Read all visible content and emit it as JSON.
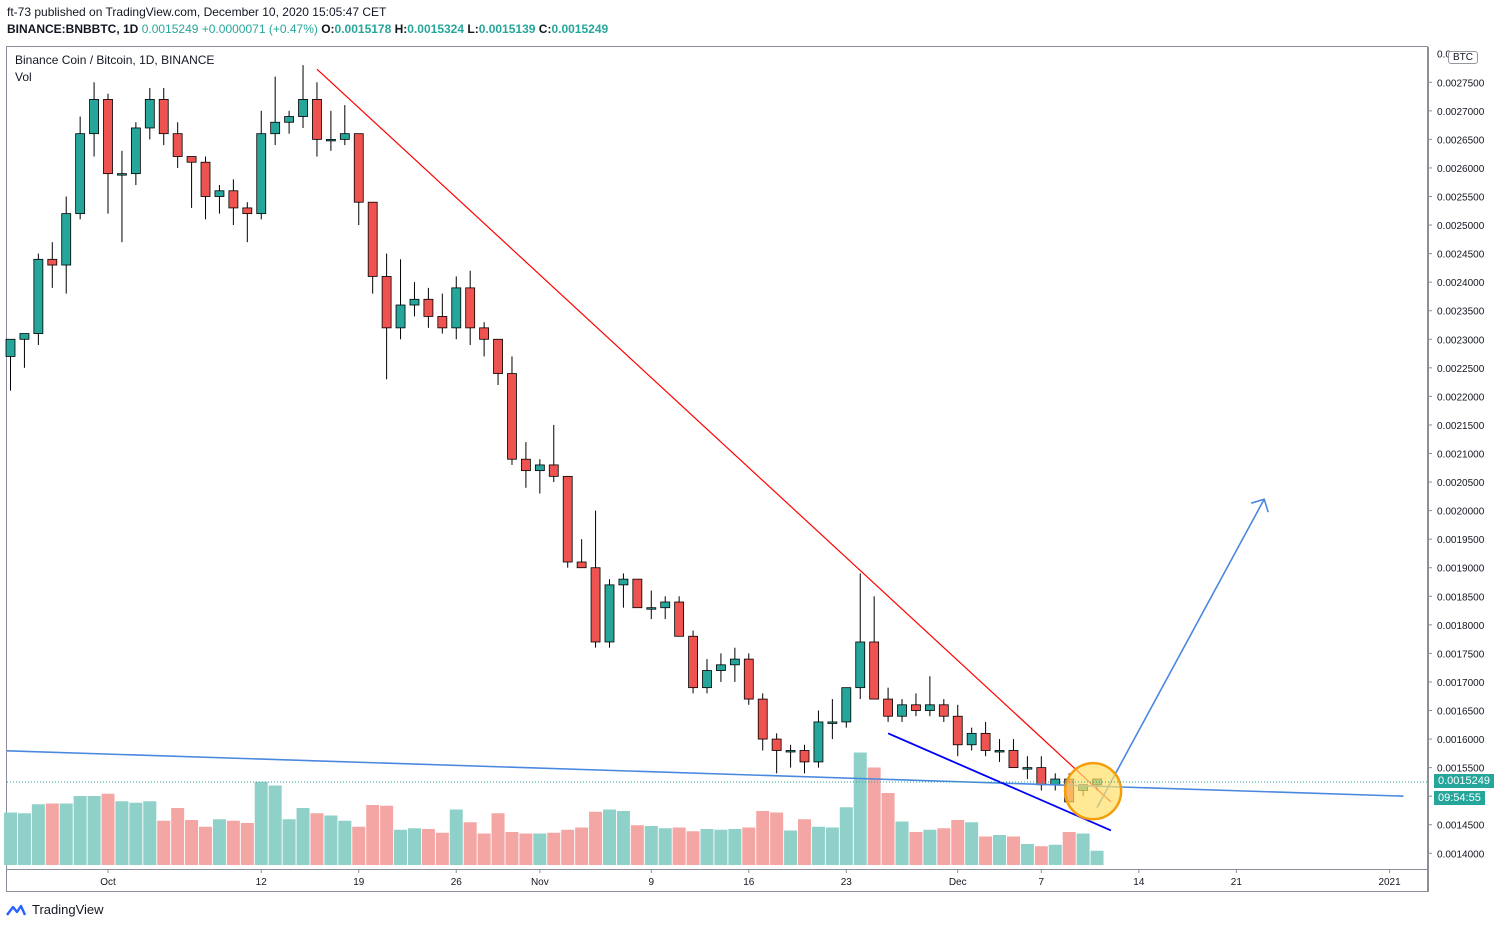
{
  "header": {
    "publisher": "ft-73 published on TradingView.com, December 10, 2020 15:05:47 CET",
    "symbol": "BINANCE:BNBBTC, 1D",
    "price": "0.0015249",
    "change": "+0.0000071 (+0.47%)",
    "o_label": "O:",
    "o_val": "0.0015178",
    "h_label": "H:",
    "h_val": "0.0015324",
    "l_label": "L:",
    "l_val": "0.0015139",
    "c_label": "C:",
    "c_val": "0.0015249"
  },
  "legend": {
    "title": "Binance Coin / Bitcoin, 1D, BINANCE",
    "vol": "Vol"
  },
  "currency_badge": "BTC",
  "last_price_tag": "0.0015249",
  "countdown_tag": "09:54:55",
  "logo_text": "TradingView",
  "colors": {
    "up": "#26a69a",
    "down": "#ef5350",
    "up_vol": "#8fd0c8",
    "down_vol": "#f4a6a4",
    "resistance": "#ff0000",
    "support": "#0000ff",
    "trend": "#4a88e0",
    "highlight": "#ffe066"
  },
  "chart_data": {
    "type": "candlestick",
    "title": "Binance Coin / Bitcoin, 1D, BINANCE",
    "ylim": [
      0.0013725,
      0.00281
    ],
    "y_ticks": [
      "0.0014000",
      "0.0014500",
      "0.0015000",
      "0.0015500",
      "0.0016000",
      "0.0016500",
      "0.0017000",
      "0.0017500",
      "0.0018000",
      "0.0018500",
      "0.0019000",
      "0.0019500",
      "0.0020000",
      "0.0020500",
      "0.0021000",
      "0.0021500",
      "0.0022000",
      "0.0022500",
      "0.0023000",
      "0.0023500",
      "0.0024000",
      "0.0024500",
      "0.0025000",
      "0.0025500",
      "0.0026000",
      "0.0026500",
      "0.0027000",
      "0.0027500"
    ],
    "y_top_partial": "0.0",
    "x_ticks": [
      {
        "label": "Oct",
        "i": 7
      },
      {
        "label": "12",
        "i": 18
      },
      {
        "label": "19",
        "i": 25
      },
      {
        "label": "26",
        "i": 32
      },
      {
        "label": "Nov",
        "i": 38
      },
      {
        "label": "9",
        "i": 46
      },
      {
        "label": "16",
        "i": 53
      },
      {
        "label": "23",
        "i": 60
      },
      {
        "label": "Dec",
        "i": 68
      },
      {
        "label": "7",
        "i": 74
      },
      {
        "label": "14",
        "i": 81
      },
      {
        "label": "21",
        "i": 88
      },
      {
        "label": "2021",
        "i": 99
      }
    ],
    "candles": [
      [
        0.00227,
        0.0023,
        0.00221,
        0.0023
      ],
      [
        0.0023,
        0.00231,
        0.00225,
        0.00231
      ],
      [
        0.00231,
        0.00245,
        0.00229,
        0.00244
      ],
      [
        0.00244,
        0.00247,
        0.00239,
        0.00243
      ],
      [
        0.00243,
        0.00255,
        0.00238,
        0.00252
      ],
      [
        0.00252,
        0.00269,
        0.00251,
        0.00266
      ],
      [
        0.00266,
        0.00275,
        0.00262,
        0.00272
      ],
      [
        0.00272,
        0.00273,
        0.00252,
        0.00259
      ],
      [
        0.00259,
        0.00263,
        0.00247,
        0.00259
      ],
      [
        0.00259,
        0.00268,
        0.00257,
        0.00267
      ],
      [
        0.00267,
        0.00274,
        0.00265,
        0.00272
      ],
      [
        0.00272,
        0.00274,
        0.00264,
        0.00266
      ],
      [
        0.00266,
        0.00268,
        0.0026,
        0.00262
      ],
      [
        0.00262,
        0.00262,
        0.00253,
        0.00261
      ],
      [
        0.00261,
        0.00262,
        0.00251,
        0.00255
      ],
      [
        0.00255,
        0.00257,
        0.00252,
        0.00256
      ],
      [
        0.00256,
        0.00258,
        0.0025,
        0.00253
      ],
      [
        0.00253,
        0.00254,
        0.00247,
        0.00252
      ],
      [
        0.00252,
        0.0027,
        0.00251,
        0.00266
      ],
      [
        0.00266,
        0.00276,
        0.00264,
        0.00268
      ],
      [
        0.00268,
        0.0027,
        0.00266,
        0.00269
      ],
      [
        0.00269,
        0.00278,
        0.00267,
        0.00272
      ],
      [
        0.00272,
        0.00275,
        0.00262,
        0.00265
      ],
      [
        0.00265,
        0.0027,
        0.00263,
        0.00265
      ],
      [
        0.00265,
        0.00271,
        0.00264,
        0.00266
      ],
      [
        0.00266,
        0.00266,
        0.0025,
        0.00254
      ],
      [
        0.00254,
        0.00254,
        0.00238,
        0.00241
      ],
      [
        0.00241,
        0.00245,
        0.00223,
        0.00232
      ],
      [
        0.00232,
        0.00244,
        0.0023,
        0.00236
      ],
      [
        0.00236,
        0.0024,
        0.00234,
        0.00237
      ],
      [
        0.00237,
        0.00239,
        0.00232,
        0.00234
      ],
      [
        0.00234,
        0.00238,
        0.00231,
        0.00232
      ],
      [
        0.00232,
        0.00241,
        0.0023,
        0.00239
      ],
      [
        0.00239,
        0.00242,
        0.00229,
        0.00232
      ],
      [
        0.00232,
        0.00233,
        0.00227,
        0.0023
      ],
      [
        0.0023,
        0.0023,
        0.00222,
        0.00224
      ],
      [
        0.00224,
        0.00227,
        0.00208,
        0.00209
      ],
      [
        0.00209,
        0.00212,
        0.00204,
        0.00207
      ],
      [
        0.00207,
        0.00209,
        0.00203,
        0.00208
      ],
      [
        0.00208,
        0.00215,
        0.00205,
        0.00206
      ],
      [
        0.00206,
        0.00206,
        0.0019,
        0.00191
      ],
      [
        0.00191,
        0.00195,
        0.0019,
        0.0019
      ],
      [
        0.0019,
        0.002,
        0.00176,
        0.00177
      ],
      [
        0.00177,
        0.00188,
        0.00176,
        0.00187
      ],
      [
        0.00187,
        0.00189,
        0.00183,
        0.00188
      ],
      [
        0.00188,
        0.00188,
        0.00183,
        0.00183
      ],
      [
        0.00183,
        0.00186,
        0.00181,
        0.00183
      ],
      [
        0.00183,
        0.00185,
        0.00181,
        0.00184
      ],
      [
        0.00184,
        0.00185,
        0.00178,
        0.00178
      ],
      [
        0.00178,
        0.00179,
        0.00168,
        0.00169
      ],
      [
        0.00169,
        0.00174,
        0.00168,
        0.00172
      ],
      [
        0.00172,
        0.00175,
        0.0017,
        0.00173
      ],
      [
        0.00173,
        0.00176,
        0.0017,
        0.00174
      ],
      [
        0.00174,
        0.00175,
        0.00166,
        0.00167
      ],
      [
        0.00167,
        0.00168,
        0.00158,
        0.0016
      ],
      [
        0.0016,
        0.00161,
        0.00154,
        0.00158
      ],
      [
        0.00158,
        0.00159,
        0.00155,
        0.00158
      ],
      [
        0.00158,
        0.00159,
        0.00154,
        0.00156
      ],
      [
        0.00156,
        0.00165,
        0.00155,
        0.00163
      ],
      [
        0.00163,
        0.00167,
        0.0016,
        0.00163
      ],
      [
        0.00163,
        0.00169,
        0.00162,
        0.00169
      ],
      [
        0.00169,
        0.00189,
        0.00167,
        0.00177
      ],
      [
        0.00177,
        0.00185,
        0.00167,
        0.00167
      ],
      [
        0.00167,
        0.00169,
        0.00163,
        0.00164
      ],
      [
        0.00164,
        0.00167,
        0.00163,
        0.00166
      ],
      [
        0.00166,
        0.00168,
        0.00164,
        0.00165
      ],
      [
        0.00165,
        0.00171,
        0.00164,
        0.00166
      ],
      [
        0.00166,
        0.00167,
        0.00163,
        0.00164
      ],
      [
        0.00164,
        0.00166,
        0.00157,
        0.00159
      ],
      [
        0.00159,
        0.00162,
        0.00158,
        0.00161
      ],
      [
        0.00161,
        0.00163,
        0.00157,
        0.00158
      ],
      [
        0.00158,
        0.0016,
        0.00156,
        0.00158
      ],
      [
        0.00158,
        0.0016,
        0.00155,
        0.00155
      ],
      [
        0.00155,
        0.00157,
        0.00153,
        0.00155
      ],
      [
        0.00155,
        0.00157,
        0.00151,
        0.00152
      ],
      [
        0.00152,
        0.00154,
        0.00151,
        0.00153
      ],
      [
        0.00153,
        0.00154,
        0.0015,
        0.00149
      ],
      [
        0.00151,
        0.00152,
        0.0015,
        0.00152
      ],
      [
        0.00152,
        0.00153,
        0.00151,
        0.00153
      ]
    ],
    "volumes": [
      70,
      69,
      81,
      82,
      82,
      92,
      92,
      95,
      85,
      83,
      85,
      59,
      76,
      60,
      51,
      61,
      59,
      56,
      111,
      106,
      61,
      76,
      69,
      66,
      59,
      51,
      80,
      79,
      47,
      49,
      48,
      43,
      74,
      57,
      42,
      69,
      44,
      42,
      42,
      43,
      47,
      50,
      71,
      74,
      72,
      53,
      52,
      49,
      50,
      45,
      48,
      47,
      48,
      50,
      72,
      70,
      46,
      61,
      51,
      50,
      77,
      150,
      130,
      96,
      58,
      44,
      47,
      49,
      60,
      57,
      38,
      40,
      38,
      28,
      25,
      27,
      44,
      42,
      19
    ],
    "drawings": {
      "resistance": [
        [
          22,
          0.002773
        ],
        [
          79,
          0.00149
        ]
      ],
      "horizontal_support": [
        [
          -1,
          0.00158
        ],
        [
          100,
          0.0015
        ]
      ],
      "wedge_support": [
        [
          63,
          0.00161
        ],
        [
          79,
          0.00144
        ]
      ],
      "projection": [
        [
          78,
          0.00148
        ],
        [
          90,
          0.00202
        ]
      ],
      "highlight_circle": {
        "i": 77,
        "y": 0.0015
      }
    }
  }
}
